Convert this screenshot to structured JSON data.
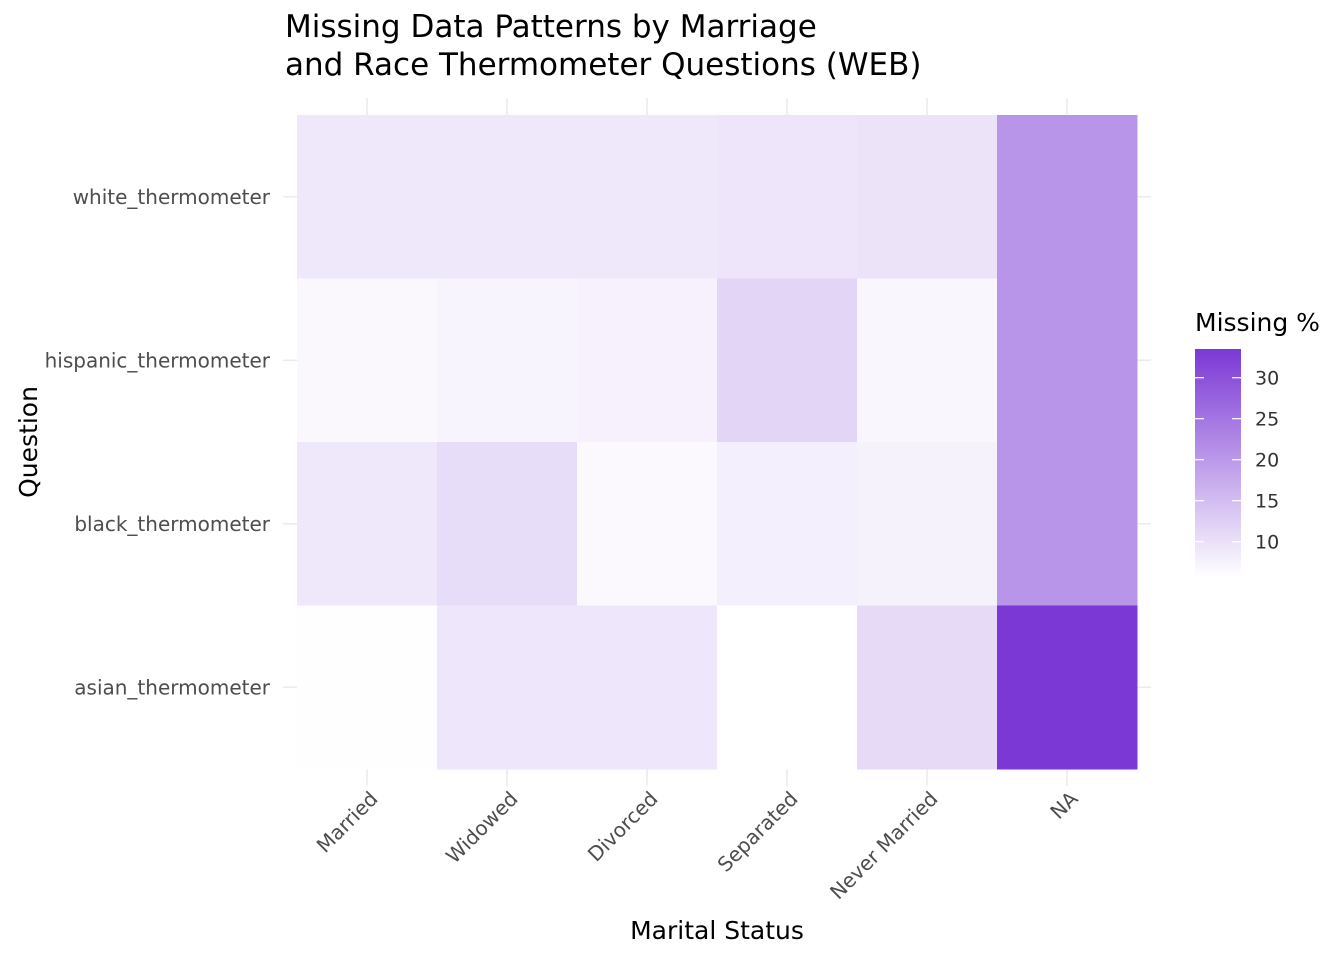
{
  "chart_data": {
    "type": "heatmap",
    "title_lines": [
      "Missing Data Patterns by Marriage",
      "and Race Thermometer Questions (WEB)"
    ],
    "xlabel": "Marital Status",
    "ylabel": "Question",
    "x_categories": [
      "Married",
      "Widowed",
      "Divorced",
      "Separated",
      "Never Married",
      "NA"
    ],
    "y_categories": [
      "asian_thermometer",
      "black_thermometer",
      "hispanic_thermometer",
      "white_thermometer"
    ],
    "values": [
      {
        "x": "Married",
        "y": "white_thermometer",
        "value": 9.0
      },
      {
        "x": "Widowed",
        "y": "white_thermometer",
        "value": 9.0
      },
      {
        "x": "Divorced",
        "y": "white_thermometer",
        "value": 9.0
      },
      {
        "x": "Separated",
        "y": "white_thermometer",
        "value": 9.3
      },
      {
        "x": "Never Married",
        "y": "white_thermometer",
        "value": 9.6
      },
      {
        "x": "NA",
        "y": "white_thermometer",
        "value": 20.5
      },
      {
        "x": "Married",
        "y": "hispanic_thermometer",
        "value": 6.8
      },
      {
        "x": "Widowed",
        "y": "hispanic_thermometer",
        "value": 7.2
      },
      {
        "x": "Divorced",
        "y": "hispanic_thermometer",
        "value": 7.6
      },
      {
        "x": "Separated",
        "y": "hispanic_thermometer",
        "value": 11.5
      },
      {
        "x": "Never Married",
        "y": "hispanic_thermometer",
        "value": 7.0
      },
      {
        "x": "NA",
        "y": "hispanic_thermometer",
        "value": 20.5
      },
      {
        "x": "Married",
        "y": "black_thermometer",
        "value": 9.0
      },
      {
        "x": "Widowed",
        "y": "black_thermometer",
        "value": 10.5
      },
      {
        "x": "Divorced",
        "y": "black_thermometer",
        "value": 6.6
      },
      {
        "x": "Separated",
        "y": "black_thermometer",
        "value": 8.0
      },
      {
        "x": "Never Married",
        "y": "black_thermometer",
        "value": 7.5
      },
      {
        "x": "NA",
        "y": "black_thermometer",
        "value": 20.5
      },
      {
        "x": "Married",
        "y": "asian_thermometer",
        "value": 6.0
      },
      {
        "x": "Widowed",
        "y": "asian_thermometer",
        "value": 9.2
      },
      {
        "x": "Divorced",
        "y": "asian_thermometer",
        "value": 9.2
      },
      {
        "x": "Separated",
        "y": "asian_thermometer",
        "value": 5.7
      },
      {
        "x": "Never Married",
        "y": "asian_thermometer",
        "value": 10.8
      },
      {
        "x": "NA",
        "y": "asian_thermometer",
        "value": 33.5
      }
    ],
    "legend": {
      "title": "Missing %",
      "ticks": [
        10,
        15,
        20,
        25,
        30
      ],
      "range": [
        5.7,
        33.5
      ],
      "placement": "right"
    },
    "colors": {
      "low": "#ffffff",
      "high": "#7b38d5"
    },
    "grid": true
  }
}
